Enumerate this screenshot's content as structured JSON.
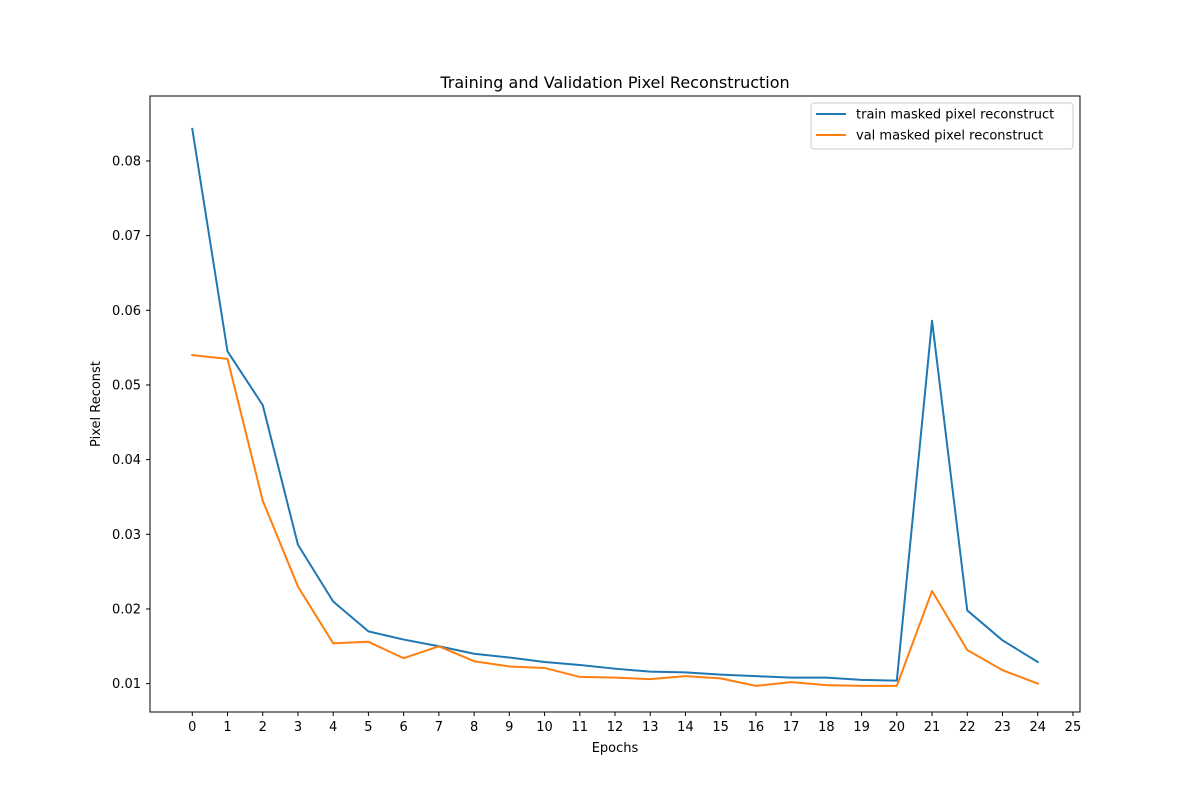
{
  "chart_data": {
    "type": "line",
    "title": "Training and Validation Pixel Reconstruction",
    "xlabel": "Epochs",
    "ylabel": "Pixel Reconst",
    "xlim": [
      -1.2,
      25.2
    ],
    "ylim": [
      0.0062,
      0.0887
    ],
    "x_ticks": [
      0,
      1,
      2,
      3,
      4,
      5,
      6,
      7,
      8,
      9,
      10,
      11,
      12,
      13,
      14,
      15,
      16,
      17,
      18,
      19,
      20,
      21,
      22,
      23,
      24,
      25
    ],
    "y_ticks": [
      0.01,
      0.02,
      0.03,
      0.04,
      0.05,
      0.06,
      0.07,
      0.08
    ],
    "y_tick_labels": [
      "0.01",
      "0.02",
      "0.03",
      "0.04",
      "0.05",
      "0.06",
      "0.07",
      "0.08"
    ],
    "grid": false,
    "legend_position": "top-right",
    "x": [
      0,
      1,
      2,
      3,
      4,
      5,
      6,
      7,
      8,
      9,
      10,
      11,
      12,
      13,
      14,
      15,
      16,
      17,
      18,
      19,
      20,
      21,
      22,
      23,
      24
    ],
    "series": [
      {
        "name": "train masked pixel reconstruct",
        "color": "#1f77b4",
        "values": [
          0.0843,
          0.0545,
          0.0473,
          0.0286,
          0.021,
          0.017,
          0.0159,
          0.015,
          0.014,
          0.0135,
          0.0129,
          0.0125,
          0.012,
          0.0116,
          0.0115,
          0.0112,
          0.011,
          0.0108,
          0.0108,
          0.0105,
          0.0104,
          0.0586,
          0.0198,
          0.0158,
          0.0129
        ]
      },
      {
        "name": "val masked pixel reconstruct",
        "color": "#ff7f0e",
        "values": [
          0.054,
          0.0535,
          0.0345,
          0.023,
          0.0154,
          0.0156,
          0.0134,
          0.015,
          0.013,
          0.0123,
          0.0121,
          0.0109,
          0.0108,
          0.0106,
          0.011,
          0.0107,
          0.0097,
          0.0102,
          0.0098,
          0.0097,
          0.0097,
          0.0224,
          0.0145,
          0.0118,
          0.01
        ]
      }
    ]
  }
}
